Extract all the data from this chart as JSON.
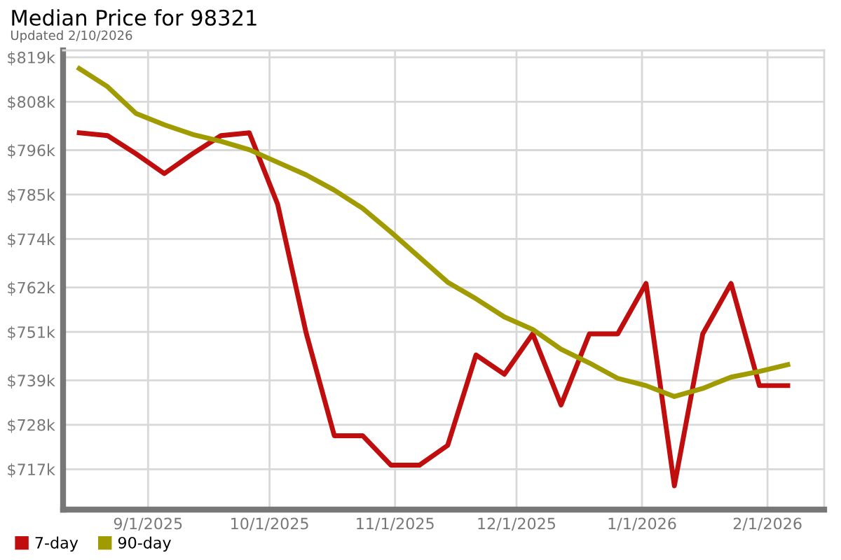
{
  "chart_data": {
    "type": "line",
    "title": "Median Price for 98321",
    "subtitle": "Updated 2/10/2026",
    "x": [
      "2025-08-15",
      "2025-08-22",
      "2025-08-29",
      "2025-09-05",
      "2025-09-12",
      "2025-09-19",
      "2025-09-26",
      "2025-10-03",
      "2025-10-10",
      "2025-10-17",
      "2025-10-24",
      "2025-10-31",
      "2025-11-07",
      "2025-11-14",
      "2025-11-21",
      "2025-11-28",
      "2025-12-05",
      "2025-12-12",
      "2025-12-19",
      "2025-12-26",
      "2026-01-02",
      "2026-01-09",
      "2026-01-16",
      "2026-01-23",
      "2026-01-30",
      "2026-02-06"
    ],
    "series": [
      {
        "name": "7-day",
        "color": "#c00d0d",
        "values": [
          800.3,
          799.6,
          795.1,
          790.2,
          795.1,
          799.6,
          800.3,
          782.6,
          750.9,
          725.3,
          725.3,
          718.0,
          718.0,
          722.9,
          745.3,
          740.5,
          750.5,
          732.9,
          750.5,
          750.5,
          763.0,
          712.9,
          750.5,
          763.0,
          737.7,
          737.7
        ]
      },
      {
        "name": "90-day",
        "color": "#a09b00",
        "values": [
          816.2,
          811.7,
          805.1,
          802.3,
          799.9,
          798.2,
          796.1,
          793.0,
          789.9,
          786.1,
          781.6,
          775.7,
          769.5,
          763.3,
          759.2,
          754.7,
          751.6,
          746.7,
          743.3,
          739.5,
          737.7,
          735.0,
          737.0,
          739.8,
          741.2,
          742.9
        ]
      }
    ],
    "xlim": [
      "2025-08-11",
      "2026-02-15"
    ],
    "xticks": [
      {
        "value": "2025-09-01",
        "label": "9/1/2025"
      },
      {
        "value": "2025-10-01",
        "label": "10/1/2025"
      },
      {
        "value": "2025-11-01",
        "label": "11/1/2025"
      },
      {
        "value": "2025-12-01",
        "label": "12/1/2025"
      },
      {
        "value": "2026-01-01",
        "label": "1/1/2026"
      },
      {
        "value": "2026-02-01",
        "label": "2/1/2026"
      }
    ],
    "ylim": [
      707,
      820.7
    ],
    "yticks": [
      {
        "value": 717,
        "label": "$717k"
      },
      {
        "value": 728,
        "label": "$728k"
      },
      {
        "value": 739,
        "label": "$739k"
      },
      {
        "value": 751,
        "label": "$751k"
      },
      {
        "value": 762,
        "label": "$762k"
      },
      {
        "value": 774,
        "label": "$774k"
      },
      {
        "value": 785,
        "label": "$785k"
      },
      {
        "value": 796,
        "label": "$796k"
      },
      {
        "value": 808,
        "label": "$808k"
      },
      {
        "value": 819,
        "label": "$819k"
      }
    ],
    "grid": true,
    "legend": "bottom left",
    "marker": "none",
    "line_style": "solid"
  }
}
